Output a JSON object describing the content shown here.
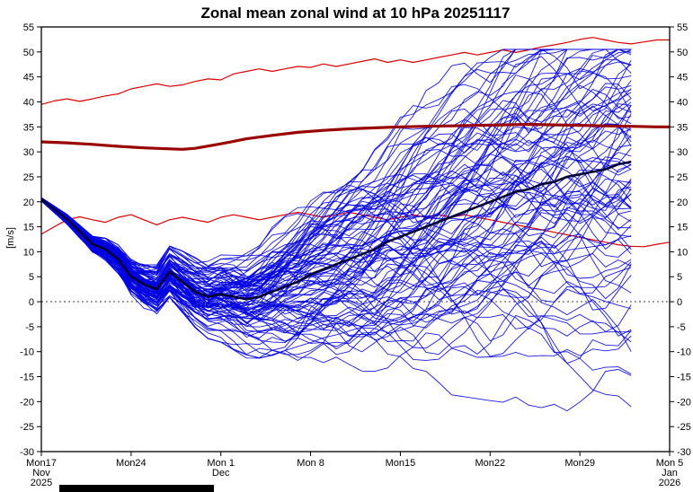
{
  "colors": {
    "member": "#0000e0",
    "ensemble_mean": "#000033",
    "clim_mean": "#990000",
    "clim_band": "#dd0000",
    "zero_line": "#404040",
    "axis": "#000000",
    "bottom_bar": "#000000"
  },
  "chart_data": {
    "type": "line",
    "title": "Zonal mean zonal wind at 10 hPa 20251117",
    "ylabel": "[m/s]",
    "x_unit": "days since 2025-11-17",
    "xlim": [
      0,
      49
    ],
    "ylim": [
      -30,
      55
    ],
    "grid": false,
    "legend": "none",
    "yticks": [
      55,
      50,
      45,
      40,
      35,
      30,
      25,
      20,
      15,
      10,
      5,
      0,
      -5,
      -10,
      -15,
      -20,
      -25,
      -30
    ],
    "xticks": [
      {
        "day": 0,
        "label": "Mon17",
        "sub": [
          "Nov",
          "2025"
        ]
      },
      {
        "day": 7,
        "label": "Mon24",
        "sub": []
      },
      {
        "day": 14,
        "label": "Mon 1",
        "sub": [
          "Dec"
        ]
      },
      {
        "day": 21,
        "label": "Mon 8",
        "sub": []
      },
      {
        "day": 28,
        "label": "Mon15",
        "sub": []
      },
      {
        "day": 35,
        "label": "Mon22",
        "sub": []
      },
      {
        "day": 42,
        "label": "Mon29",
        "sub": []
      },
      {
        "day": 49,
        "label": "Mon 5",
        "sub": [
          "Jan",
          "2026"
        ]
      }
    ],
    "series": [
      {
        "id": "clim_max",
        "name": "climatological-maximum",
        "color_key": "clim_band",
        "width": 1.2,
        "layer": "under",
        "points": [
          [
            0,
            39.5
          ],
          [
            1,
            40.2
          ],
          [
            2,
            40.6
          ],
          [
            3,
            40.1
          ],
          [
            4,
            40.6
          ],
          [
            5,
            41.2
          ],
          [
            6,
            41.6
          ],
          [
            7,
            42.6
          ],
          [
            8,
            43.1
          ],
          [
            9,
            43.6
          ],
          [
            10,
            43.1
          ],
          [
            11,
            43.4
          ],
          [
            12,
            44.1
          ],
          [
            13,
            44.6
          ],
          [
            14,
            44.4
          ],
          [
            15,
            45.6
          ],
          [
            16,
            46.1
          ],
          [
            17,
            46.6
          ],
          [
            18,
            46.1
          ],
          [
            19,
            46.6
          ],
          [
            20,
            47.1
          ],
          [
            21,
            46.9
          ],
          [
            22,
            47.6
          ],
          [
            23,
            47.1
          ],
          [
            24,
            47.6
          ],
          [
            25,
            48.1
          ],
          [
            26,
            48.6
          ],
          [
            27,
            47.9
          ],
          [
            28,
            48.4
          ],
          [
            29,
            47.9
          ],
          [
            30,
            48.4
          ],
          [
            31,
            48.9
          ],
          [
            32,
            49.4
          ],
          [
            33,
            49.9
          ],
          [
            34,
            49.4
          ],
          [
            35,
            49.9
          ],
          [
            36,
            50.4
          ],
          [
            37,
            49.9
          ],
          [
            38,
            50.4
          ],
          [
            39,
            51
          ],
          [
            40,
            51.4
          ],
          [
            41,
            51.9
          ],
          [
            42,
            52.5
          ],
          [
            43,
            52.9
          ],
          [
            44,
            52.4
          ],
          [
            45,
            51.9
          ],
          [
            46,
            51.6
          ],
          [
            47,
            52
          ],
          [
            48,
            52.4
          ],
          [
            49,
            52.4
          ]
        ]
      },
      {
        "id": "clim_min",
        "name": "climatological-minimum",
        "color_key": "clim_band",
        "width": 1.2,
        "layer": "under",
        "points": [
          [
            0,
            13.5
          ],
          [
            1,
            15
          ],
          [
            2,
            16.4
          ],
          [
            3,
            17
          ],
          [
            4,
            16.4
          ],
          [
            5,
            15.9
          ],
          [
            6,
            16.9
          ],
          [
            7,
            17.4
          ],
          [
            8,
            16.4
          ],
          [
            9,
            15.4
          ],
          [
            10,
            16.4
          ],
          [
            11,
            16.9
          ],
          [
            12,
            16.4
          ],
          [
            13,
            15.9
          ],
          [
            14,
            16.9
          ],
          [
            15,
            17.4
          ],
          [
            16,
            16.9
          ],
          [
            17,
            16.4
          ],
          [
            18,
            16.9
          ],
          [
            19,
            17.4
          ],
          [
            20,
            17.9
          ],
          [
            21,
            17.4
          ],
          [
            22,
            16.9
          ],
          [
            23,
            17.4
          ],
          [
            24,
            17.9
          ],
          [
            25,
            17.4
          ],
          [
            26,
            16.9
          ],
          [
            27,
            16.4
          ],
          [
            28,
            16.9
          ],
          [
            29,
            17.4
          ],
          [
            30,
            16.9
          ],
          [
            31,
            17.4
          ],
          [
            32,
            16.9
          ],
          [
            33,
            17.4
          ],
          [
            34,
            16.9
          ],
          [
            35,
            16.4
          ],
          [
            36,
            15.9
          ],
          [
            37,
            15.4
          ],
          [
            38,
            14.9
          ],
          [
            39,
            14.4
          ],
          [
            40,
            13.9
          ],
          [
            41,
            13.4
          ],
          [
            42,
            12.9
          ],
          [
            43,
            12.4
          ],
          [
            44,
            11.9
          ],
          [
            45,
            11.4
          ],
          [
            46,
            11.1
          ],
          [
            47,
            11
          ],
          [
            48,
            11.5
          ],
          [
            49,
            11.9
          ]
        ]
      },
      {
        "id": "clim_mean",
        "name": "climatological-mean",
        "color_key": "clim_mean",
        "width": 3.2,
        "layer": "over",
        "points": [
          [
            0,
            32
          ],
          [
            2,
            31.8
          ],
          [
            4,
            31.5
          ],
          [
            6,
            31.1
          ],
          [
            8,
            30.8
          ],
          [
            10,
            30.6
          ],
          [
            11,
            30.5
          ],
          [
            12,
            30.7
          ],
          [
            14,
            31.6
          ],
          [
            16,
            32.6
          ],
          [
            18,
            33.3
          ],
          [
            20,
            33.9
          ],
          [
            22,
            34.3
          ],
          [
            24,
            34.6
          ],
          [
            26,
            34.8
          ],
          [
            28,
            35
          ],
          [
            30,
            35.1
          ],
          [
            32,
            35.2
          ],
          [
            34,
            35.3
          ],
          [
            36,
            35.4
          ],
          [
            38,
            35.5
          ],
          [
            40,
            35.4
          ],
          [
            42,
            35.3
          ],
          [
            44,
            35.2
          ],
          [
            46,
            35.1
          ],
          [
            48,
            35
          ],
          [
            49,
            35
          ]
        ]
      },
      {
        "id": "ens_mean",
        "name": "ensemble-mean",
        "color_key": "ensemble_mean",
        "width": 2.6,
        "layer": "over",
        "points": [
          [
            0,
            20.5
          ],
          [
            1,
            18.5
          ],
          [
            2,
            16.5
          ],
          [
            3,
            14
          ],
          [
            4,
            11.5
          ],
          [
            5,
            10.5
          ],
          [
            6,
            8.5
          ],
          [
            7,
            5
          ],
          [
            8,
            3.5
          ],
          [
            9,
            2.5
          ],
          [
            10,
            6
          ],
          [
            11,
            4
          ],
          [
            12,
            2
          ],
          [
            13,
            1
          ],
          [
            14,
            1.5
          ],
          [
            15,
            1
          ],
          [
            16,
            0.5
          ],
          [
            17,
            1
          ],
          [
            18,
            2
          ],
          [
            19,
            3
          ],
          [
            20,
            4
          ],
          [
            21,
            5.5
          ],
          [
            22,
            6.5
          ],
          [
            23,
            7.5
          ],
          [
            24,
            8.5
          ],
          [
            25,
            9.5
          ],
          [
            26,
            10.5
          ],
          [
            27,
            12
          ],
          [
            28,
            13
          ],
          [
            29,
            14
          ],
          [
            30,
            15
          ],
          [
            31,
            16
          ],
          [
            32,
            17
          ],
          [
            33,
            18
          ],
          [
            34,
            19
          ],
          [
            35,
            20
          ],
          [
            36,
            21
          ],
          [
            37,
            22
          ],
          [
            38,
            22.5
          ],
          [
            39,
            23.5
          ],
          [
            40,
            24
          ],
          [
            41,
            25
          ],
          [
            42,
            25.5
          ],
          [
            43,
            26
          ],
          [
            44,
            26.5
          ],
          [
            45,
            27.5
          ],
          [
            46,
            28
          ]
        ]
      }
    ],
    "members": {
      "count": 95,
      "seed": 20251117,
      "pivot_day": 14,
      "end_day": 46,
      "r_min": 0.1,
      "r_span": 1.8,
      "step_base": 0.5,
      "step_coef": 0.18,
      "clamp": 1.6,
      "vmin": -29.5,
      "vmax": 50.5,
      "width": 0.9,
      "spread": [
        [
          0,
          0.2
        ],
        [
          2,
          0.6
        ],
        [
          4,
          1
        ],
        [
          6,
          1.8
        ],
        [
          7,
          2.5
        ],
        [
          8,
          3
        ],
        [
          10,
          3.2
        ],
        [
          12,
          4.5
        ],
        [
          14,
          6
        ],
        [
          17,
          7.5
        ],
        [
          21,
          10
        ],
        [
          25,
          12
        ],
        [
          28,
          13
        ],
        [
          32,
          14
        ],
        [
          35,
          15
        ],
        [
          40,
          16.5
        ],
        [
          46,
          18
        ]
      ]
    }
  }
}
